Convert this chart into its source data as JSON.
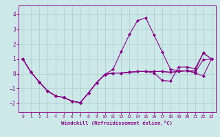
{
  "xlabel": "Windchill (Refroidissement éolien,°C)",
  "background_color": "#cce8e8",
  "grid_color": "#aacccc",
  "line_color": "#880088",
  "xlim": [
    -0.5,
    23.5
  ],
  "ylim": [
    -2.6,
    4.6
  ],
  "yticks": [
    -2,
    -1,
    0,
    1,
    2,
    3,
    4
  ],
  "xticks": [
    0,
    1,
    2,
    3,
    4,
    5,
    6,
    7,
    8,
    9,
    10,
    11,
    12,
    13,
    14,
    15,
    16,
    17,
    18,
    19,
    20,
    21,
    22,
    23
  ],
  "series": [
    [
      1.0,
      0.1,
      -0.55,
      -1.15,
      -1.5,
      -1.6,
      -1.85,
      -1.95,
      -1.3,
      -0.6,
      -0.05,
      0.05,
      0.05,
      0.1,
      0.15,
      0.15,
      0.15,
      0.15,
      0.1,
      0.15,
      0.2,
      0.1,
      0.95,
      1.0
    ],
    [
      1.0,
      0.1,
      -0.55,
      -1.15,
      -1.5,
      -1.6,
      -1.85,
      -1.95,
      -1.3,
      -0.6,
      -0.05,
      0.3,
      1.5,
      2.65,
      3.6,
      3.75,
      2.6,
      1.45,
      0.3,
      0.2,
      0.2,
      0.2,
      1.4,
      1.0
    ],
    [
      1.0,
      0.1,
      -0.55,
      -1.15,
      -1.5,
      -1.6,
      -1.85,
      -1.95,
      -1.3,
      -0.6,
      -0.05,
      0.05,
      0.05,
      0.1,
      0.15,
      0.15,
      0.15,
      0.15,
      0.1,
      0.15,
      0.2,
      0.05,
      -0.15,
      1.0
    ],
    [
      1.0,
      0.1,
      -0.55,
      -1.15,
      -1.5,
      -1.6,
      -1.85,
      -1.95,
      -1.3,
      -0.6,
      -0.05,
      0.05,
      0.05,
      0.1,
      0.15,
      0.15,
      0.05,
      -0.45,
      -0.5,
      0.45,
      0.45,
      0.35,
      1.4,
      1.0
    ]
  ],
  "marker": "D",
  "markersize": 2.0,
  "linewidth": 0.8
}
